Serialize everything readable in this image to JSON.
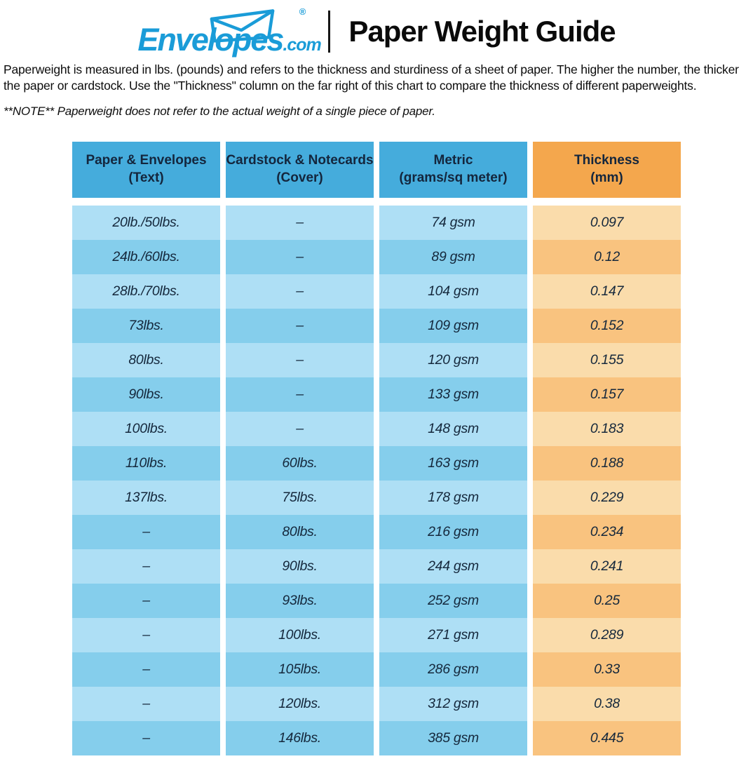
{
  "brand": {
    "name": "Envelopes",
    "tld": ".com",
    "registered": "®"
  },
  "header": {
    "title": "Paper Weight Guide"
  },
  "intro": "Paperweight is measured in lbs. (pounds) and refers to the thickness and sturdiness of a sheet of paper. The higher the number, the thicker the paper or cardstock. Use the \"Thickness\" column on the far right of this chart to compare the thickness of different paperweights.",
  "note": {
    "prefix": "**NOTE**",
    "body": " Paperweight does not refer to the actual weight of a single piece of paper."
  },
  "table": {
    "columns": [
      {
        "line1": "Paper & Envelopes",
        "line2": "(Text)"
      },
      {
        "line1": "Cardstock & Notecards",
        "line2": "(Cover)"
      },
      {
        "line1": "Metric",
        "line2": "(grams/sq meter)"
      },
      {
        "line1": "Thickness",
        "line2": "(mm)"
      }
    ],
    "rows": [
      [
        "20lb./50lbs.",
        "–",
        "74 gsm",
        "0.097"
      ],
      [
        "24lb./60lbs.",
        "–",
        "89 gsm",
        "0.12"
      ],
      [
        "28lb./70lbs.",
        "–",
        "104 gsm",
        "0.147"
      ],
      [
        "73lbs.",
        "–",
        "109 gsm",
        "0.152"
      ],
      [
        "80lbs.",
        "–",
        "120 gsm",
        "0.155"
      ],
      [
        "90lbs.",
        "–",
        "133 gsm",
        "0.157"
      ],
      [
        "100lbs.",
        "–",
        "148 gsm",
        "0.183"
      ],
      [
        "110lbs.",
        "60lbs.",
        "163 gsm",
        "0.188"
      ],
      [
        "137lbs.",
        "75lbs.",
        "178 gsm",
        "0.229"
      ],
      [
        "–",
        "80lbs.",
        "216 gsm",
        "0.234"
      ],
      [
        "–",
        "90lbs.",
        "244 gsm",
        "0.241"
      ],
      [
        "–",
        "93lbs.",
        "252 gsm",
        "0.25"
      ],
      [
        "–",
        "100lbs.",
        "271 gsm",
        "0.289"
      ],
      [
        "–",
        "105lbs.",
        "286 gsm",
        "0.33"
      ],
      [
        "–",
        "120lbs.",
        "312 gsm",
        "0.38"
      ],
      [
        "–",
        "146lbs.",
        "385 gsm",
        "0.445"
      ]
    ]
  },
  "colors": {
    "header_blue": "#45ACDC",
    "header_orange": "#F4A74D",
    "row_blue_light": "#AEDFF5",
    "row_blue_dark": "#85CEEC",
    "row_orange_light": "#FADCAB",
    "row_orange_dark": "#F9C37F",
    "logo_blue": "#1A9CD8",
    "table_text": "#15283C"
  }
}
